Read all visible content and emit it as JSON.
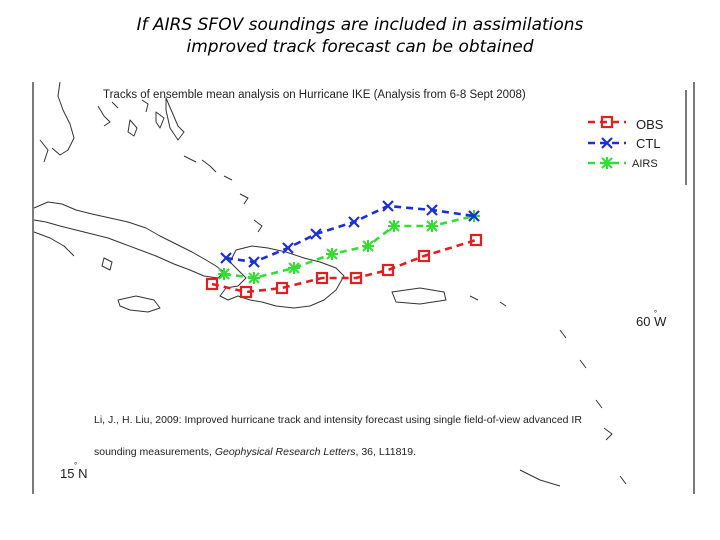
{
  "slide": {
    "title_line1": "If AIRS SFOV soundings are included in assimilations",
    "title_line2": "improved track forecast can be obtained"
  },
  "map": {
    "caption": "Tracks of ensemble mean analysis on Hurricane IKE (Analysis from 6-8 Sept 2008)",
    "lon_label": "60 W",
    "lat_label": "15 N",
    "degree_symbol": "°"
  },
  "legend": {
    "items": [
      {
        "label": "OBS",
        "color": "#e02020",
        "marker": "square-marker-icon"
      },
      {
        "label": "CTL",
        "color": "#1c2fd6",
        "marker": "x-marker-icon"
      },
      {
        "label": "AIRS",
        "color": "#33dd33",
        "marker": "star-marker-icon"
      }
    ]
  },
  "tracks": {
    "OBS": {
      "color": "#e02020",
      "marker": "square-marker-icon"
    },
    "CTL": {
      "color": "#1c2fd6",
      "marker": "x-marker-icon"
    },
    "AIRS": {
      "color": "#33dd33",
      "marker": "star-marker-icon"
    }
  },
  "citation": {
    "line1": "Li, J., H. Liu, 2009: Improved hurricane track and intensity forecast using single field-of-view advanced IR",
    "line2_prefix": "sounding measurements, ",
    "journal": "Geophysical Research Letters",
    "line2_suffix": ", 36, L11819."
  }
}
